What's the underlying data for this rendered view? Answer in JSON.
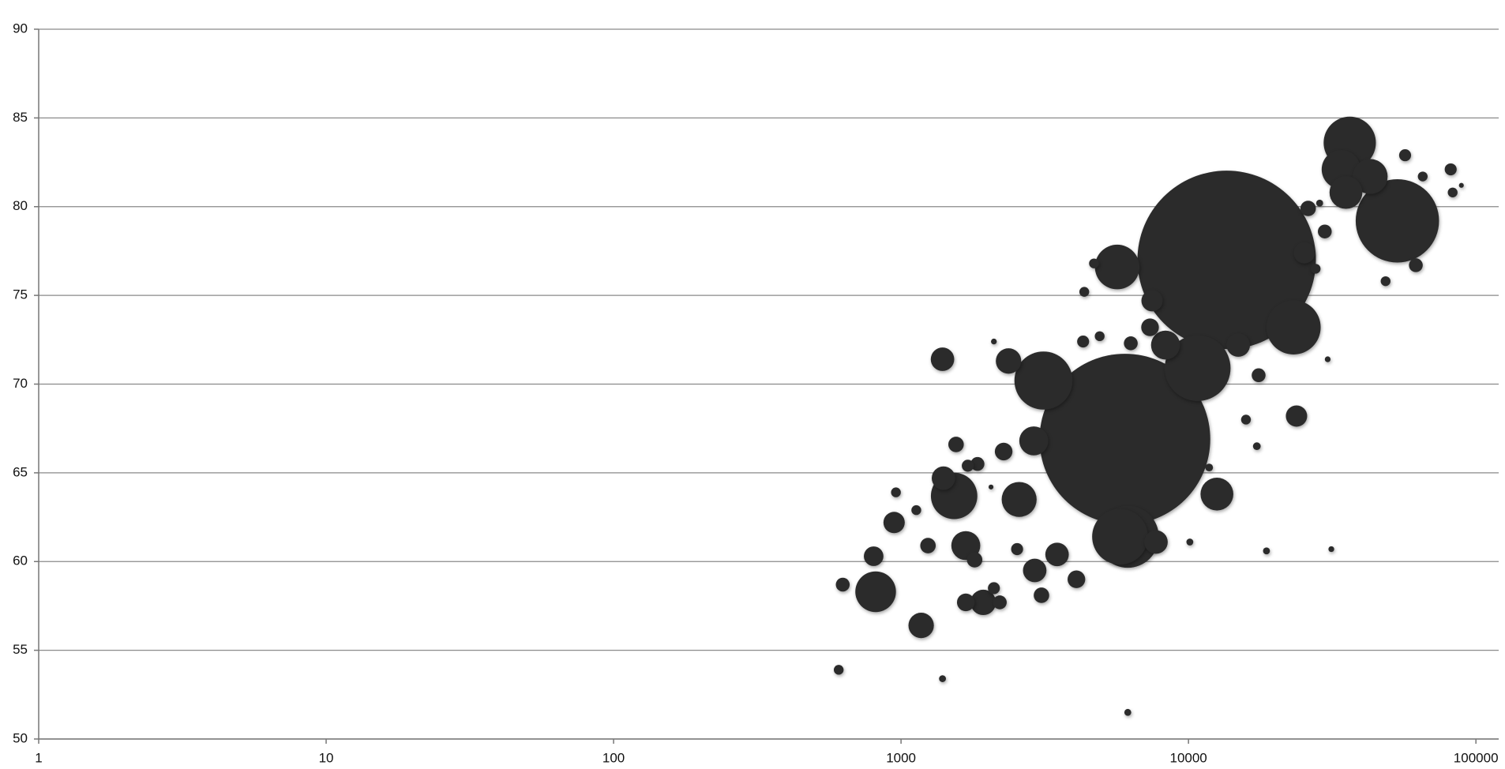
{
  "chart_data": {
    "type": "bubble",
    "color": "#2b2b2b",
    "log_x": true,
    "grid": true,
    "xlim": [
      1,
      120000
    ],
    "ylim": [
      50,
      90
    ],
    "xticks": [
      1,
      10,
      100,
      1000,
      10000,
      100000
    ],
    "yticks": [
      50,
      55,
      60,
      65,
      70,
      75,
      80,
      85,
      90
    ],
    "x": [
      13580,
      6010,
      53300,
      10760,
      6150,
      3130,
      5780,
      23200,
      36400,
      1530,
      5650,
      816,
      33960,
      2576,
      42860,
      12560,
      35300,
      2896,
      8320,
      1680,
      2366,
      1932,
      1175,
      7470,
      14900,
      25300,
      7710,
      1405,
      2918,
      1394,
      3490,
      946,
      23760,
      7350,
      1680,
      2275,
      4075,
      803,
      1241,
      1554,
      1803,
      3080,
      26080,
      29800,
      61800,
      2206,
      627,
      1845,
      17540,
      6300,
      4300,
      1707,
      56700,
      81700,
      2104,
      2534,
      83000,
      65300,
      48500,
      607,
      4690,
      4340,
      4910,
      1130,
      960,
      15850,
      27700,
      17290,
      11800,
      18680,
      10110,
      1394,
      6150,
      28600,
      31400,
      30500,
      2104,
      2056,
      89000
    ],
    "values": [
      77.0,
      66.9,
      79.2,
      70.9,
      61.4,
      70.2,
      61.4,
      73.2,
      83.6,
      63.7,
      76.6,
      58.3,
      82.1,
      63.5,
      81.7,
      63.8,
      80.8,
      66.8,
      72.2,
      60.9,
      71.3,
      57.7,
      56.4,
      74.7,
      72.2,
      77.4,
      61.1,
      64.7,
      59.5,
      71.4,
      60.4,
      62.2,
      68.2,
      73.2,
      57.7,
      66.2,
      59.0,
      60.3,
      60.9,
      66.6,
      60.1,
      58.1,
      79.9,
      78.6,
      76.7,
      57.7,
      58.7,
      65.5,
      70.5,
      72.3,
      72.4,
      65.4,
      82.9,
      82.1,
      58.5,
      60.7,
      80.8,
      81.7,
      75.8,
      53.9,
      76.8,
      75.2,
      72.7,
      62.9,
      63.9,
      68.0,
      76.5,
      66.5,
      65.3,
      60.6,
      61.1,
      53.4,
      51.5,
      80.2,
      60.7,
      71.4,
      72.4,
      64.2,
      81.2
    ],
    "sizes": [
      1330,
      1217,
      290,
      181,
      161,
      141,
      130,
      123,
      114,
      90,
      83,
      69,
      63,
      51,
      51,
      45,
      45,
      35,
      35,
      35,
      27,
      27,
      27,
      19,
      23,
      19,
      23,
      23,
      23,
      23,
      23,
      19,
      19,
      13,
      13,
      13,
      13,
      16,
      10,
      10,
      10,
      10,
      10,
      8,
      8,
      8,
      8,
      8,
      8,
      8,
      6,
      6,
      6,
      6,
      6,
      6,
      4,
      4,
      4,
      4,
      4,
      4,
      4,
      4,
      4,
      4,
      4,
      2.5,
      2.5,
      2,
      2,
      2,
      2,
      2,
      1.4,
      1.4,
      1.4,
      1,
      1
    ]
  }
}
